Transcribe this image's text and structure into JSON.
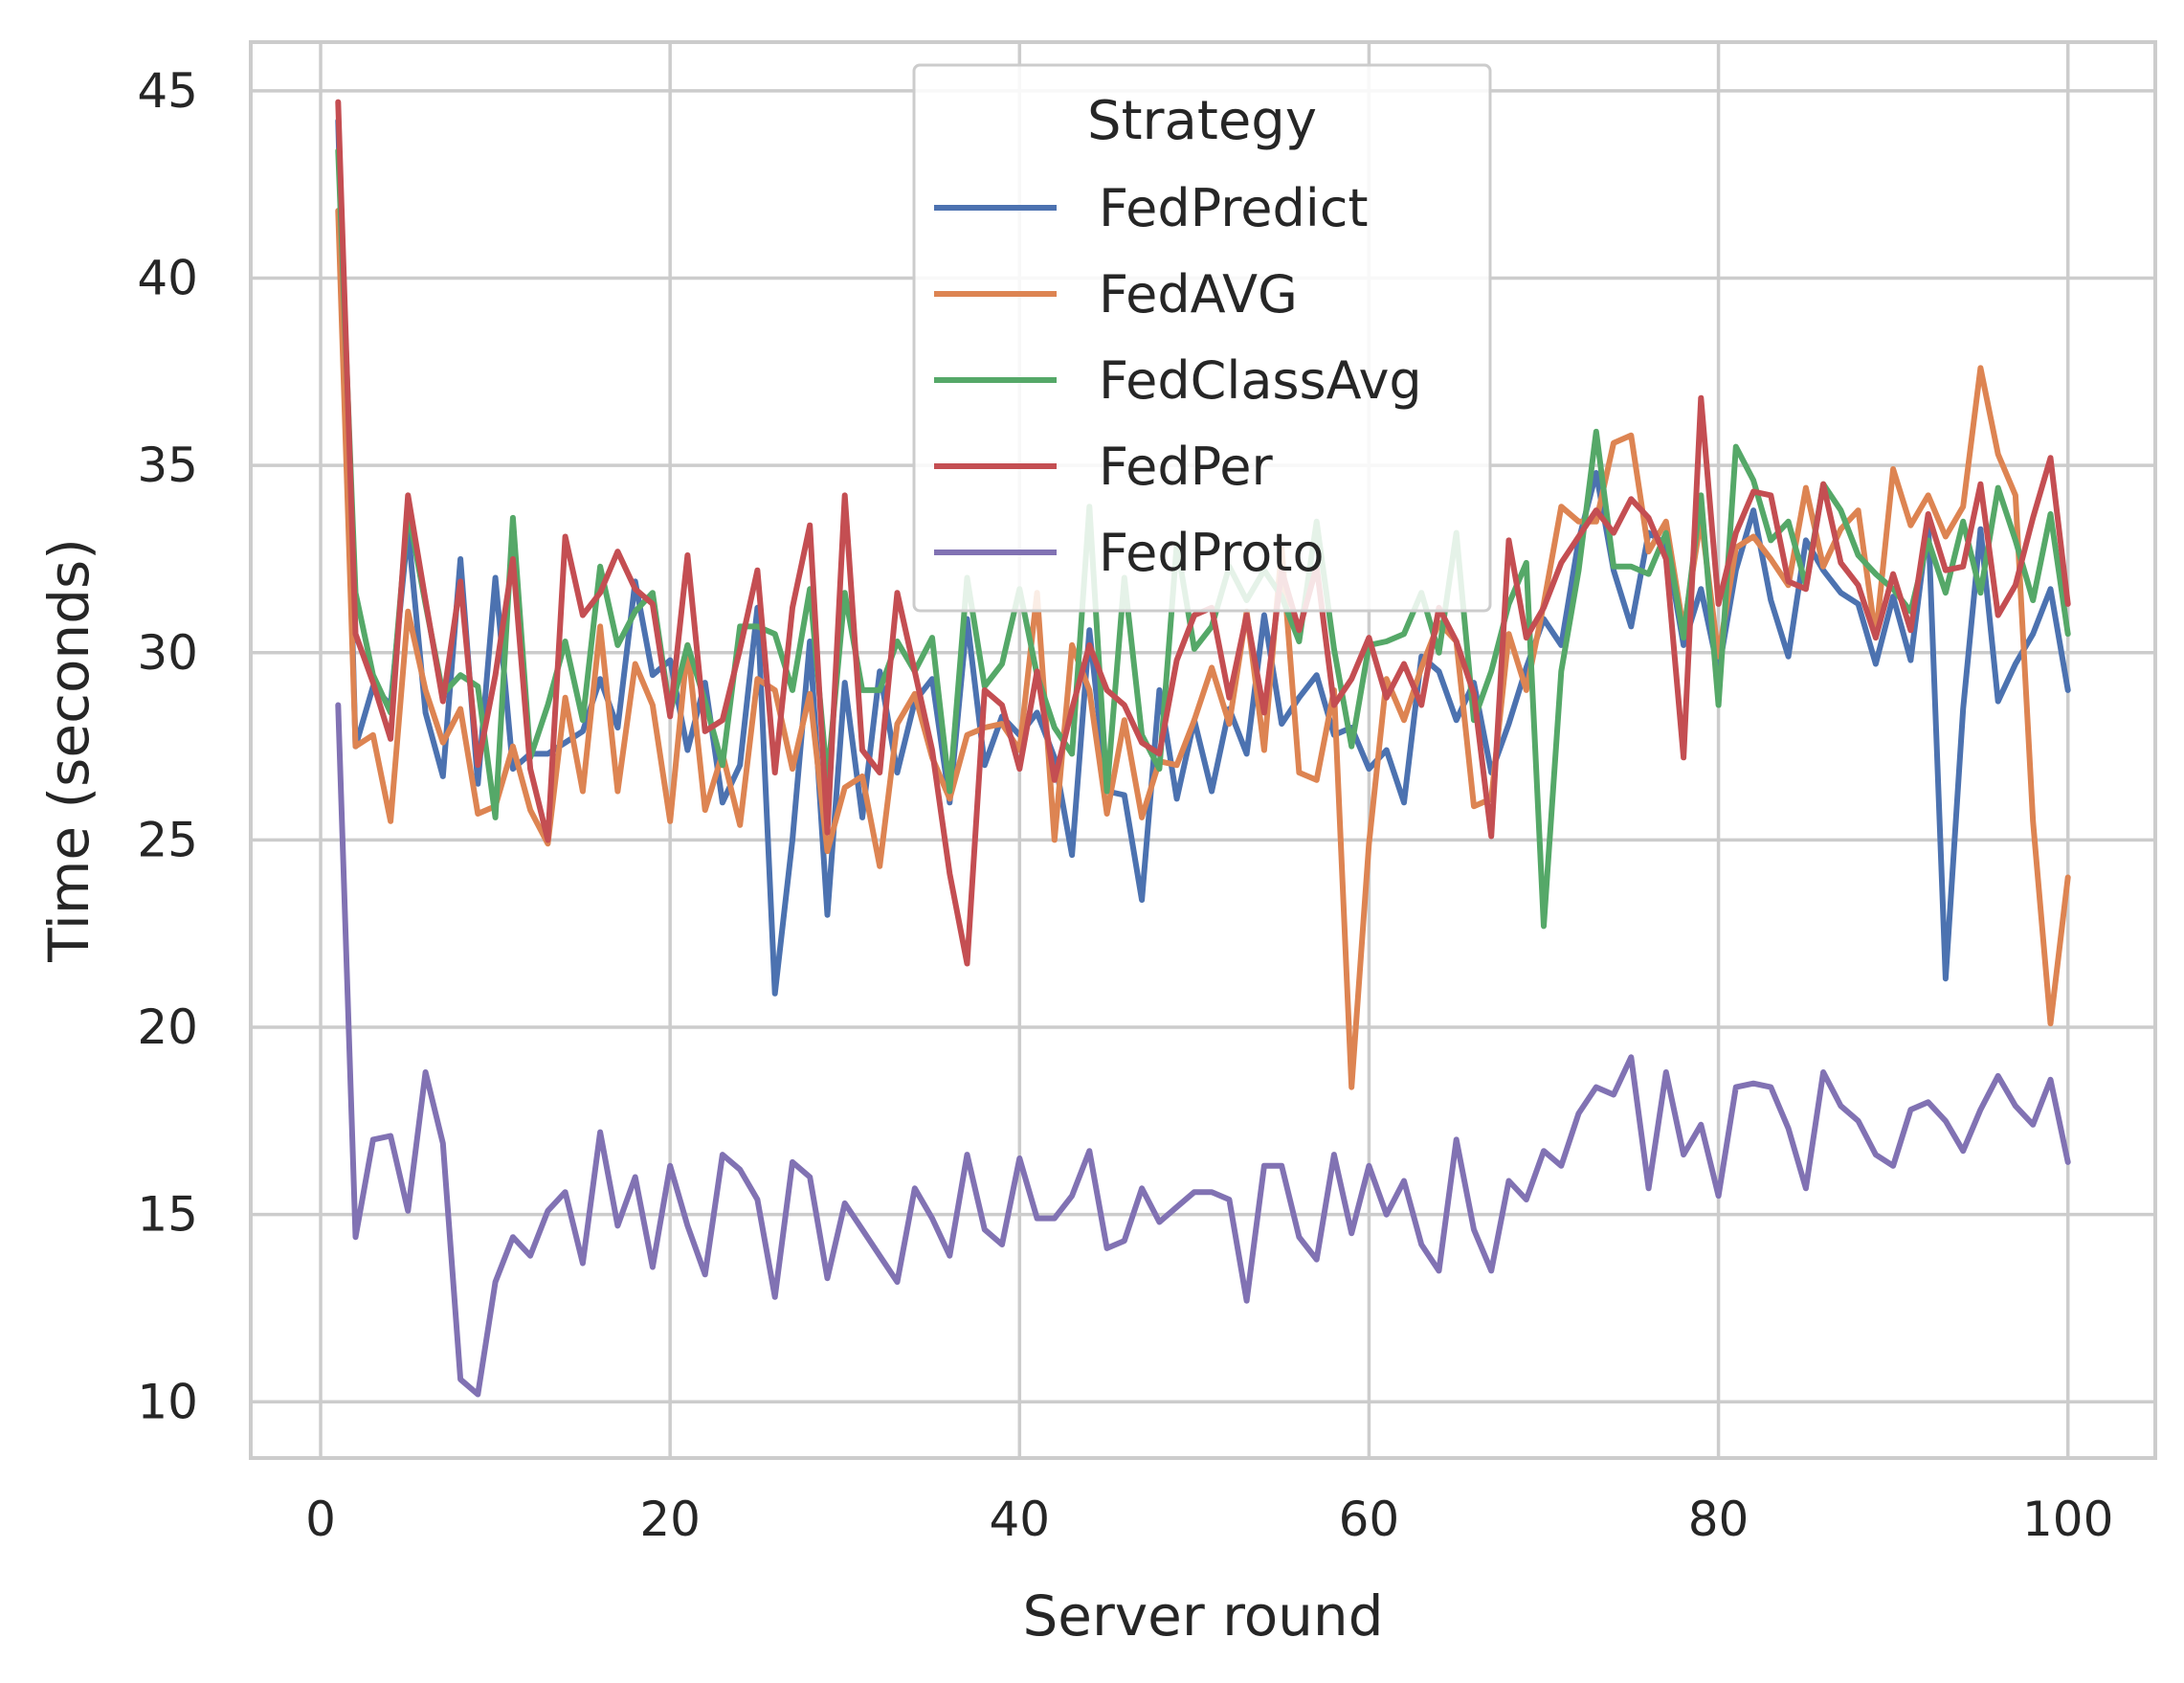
{
  "chart_data": {
    "type": "line",
    "xlabel": "Server round",
    "ylabel": "Time (seconds)",
    "xlim": [
      -4,
      105
    ],
    "ylim": [
      8.5,
      46.3
    ],
    "xticks": [
      0,
      20,
      40,
      60,
      80,
      100
    ],
    "yticks": [
      10,
      15,
      20,
      25,
      30,
      35,
      40,
      45
    ],
    "grid": true,
    "legend": {
      "title": "Strategy",
      "placement": "top-center"
    },
    "series": [
      {
        "name": "FedPredict",
        "color": "#4c72b0",
        "x": [
          1,
          2,
          3,
          4,
          5,
          6,
          7,
          8,
          9,
          10,
          11,
          12,
          13,
          14,
          15,
          16,
          17,
          18,
          19,
          20,
          21,
          22,
          23,
          24,
          25,
          26,
          27,
          28,
          29,
          30,
          31,
          32,
          33,
          34,
          35,
          36,
          37,
          38,
          39,
          40,
          41,
          42,
          43,
          44,
          45,
          46,
          47,
          48,
          49,
          50,
          51,
          52,
          53,
          54,
          55,
          56,
          57,
          58,
          59,
          60,
          61,
          62,
          63,
          64,
          65,
          66,
          67,
          68,
          69,
          70,
          71,
          72,
          73,
          74,
          75,
          76,
          77,
          78,
          79,
          80,
          81,
          82,
          83,
          84,
          85,
          86,
          87,
          88,
          89,
          90,
          91,
          92,
          93,
          94,
          95,
          96,
          97,
          98,
          99,
          100
        ],
        "values": [
          44.2,
          27.5,
          29.1,
          28.6,
          33.3,
          28.4,
          26.7,
          32.5,
          26.5,
          32.0,
          26.9,
          27.3,
          27.3,
          27.6,
          27.9,
          29.3,
          28.0,
          31.9,
          29.4,
          29.8,
          27.4,
          29.2,
          26.0,
          27.0,
          31.2,
          20.9,
          25.0,
          30.3,
          23.0,
          29.2,
          25.6,
          29.5,
          26.8,
          28.7,
          29.3,
          26.0,
          30.9,
          27.0,
          28.3,
          27.8,
          28.4,
          27.2,
          24.6,
          30.6,
          26.3,
          26.2,
          23.4,
          29.0,
          26.1,
          28.2,
          26.3,
          28.5,
          27.3,
          31.0,
          28.1,
          28.8,
          29.4,
          27.8,
          28.0,
          26.9,
          27.4,
          26.0,
          29.9,
          29.5,
          28.2,
          29.2,
          26.8,
          28.1,
          29.6,
          30.9,
          30.2,
          33.0,
          34.8,
          32.2,
          30.7,
          33.2,
          32.9,
          30.2,
          31.7,
          29.5,
          32.2,
          33.8,
          31.4,
          29.9,
          33.0,
          32.2,
          31.6,
          31.3,
          29.7,
          31.5,
          29.8,
          33.5,
          21.3,
          28.5,
          33.3,
          28.7,
          29.7,
          30.5,
          31.7,
          29.0
        ]
      },
      {
        "name": "FedAVG",
        "color": "#dd8452",
        "x": [
          1,
          2,
          3,
          4,
          5,
          6,
          7,
          8,
          9,
          10,
          11,
          12,
          13,
          14,
          15,
          16,
          17,
          18,
          19,
          20,
          21,
          22,
          23,
          24,
          25,
          26,
          27,
          28,
          29,
          30,
          31,
          32,
          33,
          34,
          35,
          36,
          37,
          38,
          39,
          40,
          41,
          42,
          43,
          44,
          45,
          46,
          47,
          48,
          49,
          50,
          51,
          52,
          53,
          54,
          55,
          56,
          57,
          58,
          59,
          60,
          61,
          62,
          63,
          64,
          65,
          66,
          67,
          68,
          69,
          70,
          71,
          72,
          73,
          74,
          75,
          76,
          77,
          78,
          79,
          80,
          81,
          82,
          83,
          84,
          85,
          86,
          87,
          88,
          89,
          90,
          91,
          92,
          93,
          94,
          95,
          96,
          97,
          98,
          99,
          100
        ],
        "values": [
          41.8,
          27.5,
          27.8,
          25.5,
          31.1,
          29.0,
          27.6,
          28.5,
          25.7,
          25.9,
          27.5,
          25.8,
          24.9,
          28.8,
          26.3,
          30.7,
          26.3,
          29.7,
          28.6,
          25.5,
          30.2,
          25.8,
          27.3,
          25.4,
          29.3,
          29.0,
          26.9,
          28.9,
          24.7,
          26.4,
          26.7,
          24.3,
          28.1,
          28.9,
          27.2,
          26.1,
          27.8,
          28.0,
          28.1,
          27.4,
          31.6,
          25.0,
          30.2,
          29.0,
          25.7,
          28.2,
          25.6,
          27.1,
          27.0,
          28.2,
          29.6,
          28.1,
          31.1,
          27.4,
          32.8,
          26.8,
          26.6,
          29.0,
          18.4,
          24.9,
          29.3,
          28.2,
          29.6,
          30.8,
          30.3,
          25.9,
          26.1,
          30.5,
          29.0,
          31.3,
          33.9,
          33.5,
          33.5,
          35.6,
          35.8,
          32.7,
          33.5,
          30.6,
          33.6,
          29.9,
          32.8,
          33.1,
          32.5,
          31.8,
          34.4,
          32.3,
          33.3,
          33.8,
          30.4,
          34.9,
          33.4,
          34.2,
          33.1,
          33.9,
          37.6,
          35.3,
          34.2,
          25.5,
          20.1,
          24.0
        ]
      },
      {
        "name": "FedClassAvg",
        "color": "#55a868",
        "x": [
          1,
          2,
          3,
          4,
          5,
          6,
          7,
          8,
          9,
          10,
          11,
          12,
          13,
          14,
          15,
          16,
          17,
          18,
          19,
          20,
          21,
          22,
          23,
          24,
          25,
          26,
          27,
          28,
          29,
          30,
          31,
          32,
          33,
          34,
          35,
          36,
          37,
          38,
          39,
          40,
          41,
          42,
          43,
          44,
          45,
          46,
          47,
          48,
          49,
          50,
          51,
          52,
          53,
          54,
          55,
          56,
          57,
          58,
          59,
          60,
          61,
          62,
          63,
          64,
          65,
          66,
          67,
          68,
          69,
          70,
          71,
          72,
          73,
          74,
          75,
          76,
          77,
          78,
          79,
          80,
          81,
          82,
          83,
          84,
          85,
          86,
          87,
          88,
          89,
          90,
          91,
          92,
          93,
          94,
          95,
          96,
          97,
          98,
          99,
          100
        ],
        "values": [
          43.4,
          31.6,
          29.4,
          28.4,
          33.8,
          31.3,
          28.9,
          29.4,
          29.1,
          25.6,
          33.6,
          27.2,
          28.6,
          30.3,
          28.2,
          32.3,
          30.2,
          31.1,
          31.6,
          28.4,
          30.2,
          28.7,
          27.0,
          30.7,
          30.7,
          30.5,
          29.0,
          31.7,
          26.6,
          31.6,
          29.0,
          29.0,
          30.3,
          29.5,
          30.4,
          26.3,
          32.0,
          29.1,
          29.7,
          31.7,
          29.4,
          28.0,
          27.3,
          33.9,
          26.3,
          32.0,
          27.8,
          26.9,
          32.9,
          30.1,
          30.7,
          32.3,
          31.4,
          32.2,
          31.5,
          30.3,
          33.5,
          30.1,
          27.5,
          30.2,
          30.3,
          30.5,
          31.6,
          30.0,
          33.2,
          28.2,
          29.5,
          31.3,
          32.4,
          22.7,
          29.5,
          32.2,
          35.9,
          32.3,
          32.3,
          32.1,
          33.2,
          30.4,
          34.2,
          28.6,
          35.5,
          34.6,
          33.0,
          33.5,
          31.8,
          34.5,
          33.8,
          32.6,
          32.1,
          31.7,
          31.1,
          33.0,
          31.6,
          33.5,
          31.6,
          34.4,
          33.0,
          31.4,
          33.7,
          30.5
        ]
      },
      {
        "name": "FedPer",
        "color": "#c44e52",
        "x": [
          1,
          2,
          3,
          4,
          5,
          6,
          7,
          8,
          9,
          10,
          11,
          12,
          13,
          14,
          15,
          16,
          17,
          18,
          19,
          20,
          21,
          22,
          23,
          24,
          25,
          26,
          27,
          28,
          29,
          30,
          31,
          32,
          33,
          34,
          35,
          36,
          37,
          38,
          39,
          40,
          41,
          42,
          43,
          44,
          45,
          46,
          47,
          48,
          49,
          50,
          51,
          52,
          53,
          54,
          55,
          56,
          57,
          58,
          59,
          60,
          61,
          62,
          63,
          64,
          65,
          66,
          67,
          68,
          69,
          70,
          71,
          72,
          73,
          74,
          75,
          76,
          77,
          78,
          79,
          80,
          81,
          82,
          83,
          84,
          85,
          86,
          87,
          88,
          89,
          90,
          91,
          92,
          93,
          94,
          95,
          96,
          97,
          98,
          99,
          100
        ],
        "values": [
          44.7,
          30.5,
          29.2,
          27.7,
          34.2,
          31.4,
          28.7,
          31.9,
          27.0,
          29.4,
          32.5,
          26.9,
          25.0,
          33.1,
          31.0,
          31.6,
          32.7,
          31.7,
          31.3,
          28.3,
          32.6,
          27.9,
          28.2,
          30.1,
          32.2,
          26.8,
          31.2,
          33.4,
          25.2,
          34.2,
          27.4,
          26.8,
          31.6,
          29.5,
          27.4,
          24.1,
          21.7,
          29.0,
          28.6,
          26.9,
          29.5,
          26.6,
          28.5,
          30.2,
          29.0,
          28.6,
          27.6,
          27.3,
          29.8,
          31.0,
          31.2,
          28.8,
          31.0,
          28.4,
          32.2,
          30.6,
          32.3,
          28.6,
          29.3,
          30.4,
          28.8,
          29.7,
          28.6,
          31.2,
          30.3,
          28.9,
          25.1,
          33.0,
          30.4,
          31.2,
          32.4,
          33.1,
          33.8,
          33.2,
          34.1,
          33.6,
          32.5,
          27.2,
          36.8,
          31.3,
          33.2,
          34.3,
          34.2,
          31.9,
          31.7,
          34.5,
          32.4,
          31.8,
          30.4,
          32.1,
          30.6,
          33.7,
          32.2,
          32.3,
          34.5,
          31.0,
          31.8,
          33.6,
          35.2,
          31.3
        ]
      },
      {
        "name": "FedProto",
        "color": "#8172b3",
        "x": [
          1,
          2,
          3,
          4,
          5,
          6,
          7,
          8,
          9,
          10,
          11,
          12,
          13,
          14,
          15,
          16,
          17,
          18,
          19,
          20,
          21,
          22,
          23,
          24,
          25,
          26,
          27,
          28,
          29,
          30,
          31,
          32,
          33,
          34,
          35,
          36,
          37,
          38,
          39,
          40,
          41,
          42,
          43,
          44,
          45,
          46,
          47,
          48,
          49,
          50,
          51,
          52,
          53,
          54,
          55,
          56,
          57,
          58,
          59,
          60,
          61,
          62,
          63,
          64,
          65,
          66,
          67,
          68,
          69,
          70,
          71,
          72,
          73,
          74,
          75,
          76,
          77,
          78,
          79,
          80,
          81,
          82,
          83,
          84,
          85,
          86,
          87,
          88,
          89,
          90,
          91,
          92,
          93,
          94,
          95,
          96,
          97,
          98,
          99,
          100
        ],
        "values": [
          28.6,
          14.4,
          17.0,
          17.1,
          15.1,
          18.8,
          16.9,
          10.6,
          10.2,
          13.2,
          14.4,
          13.9,
          15.1,
          15.6,
          13.7,
          17.2,
          14.7,
          16.0,
          13.6,
          16.3,
          14.7,
          13.4,
          16.6,
          16.2,
          15.4,
          12.8,
          16.4,
          16.0,
          13.3,
          15.3,
          14.6,
          13.9,
          13.2,
          15.7,
          14.9,
          13.9,
          16.6,
          14.6,
          14.2,
          16.5,
          14.9,
          14.9,
          15.5,
          16.7,
          14.1,
          14.3,
          15.7,
          14.8,
          15.2,
          15.6,
          15.6,
          15.4,
          12.7,
          16.3,
          16.3,
          14.4,
          13.8,
          16.6,
          14.5,
          16.3,
          15.0,
          15.9,
          14.2,
          13.5,
          17.0,
          14.6,
          13.5,
          15.9,
          15.4,
          16.7,
          16.3,
          17.7,
          18.4,
          18.2,
          19.2,
          15.7,
          18.8,
          16.6,
          17.4,
          15.5,
          18.4,
          18.5,
          18.4,
          17.3,
          15.7,
          18.8,
          17.9,
          17.5,
          16.6,
          16.3,
          17.8,
          18.0,
          17.5,
          16.7,
          17.8,
          18.7,
          17.9,
          17.4,
          18.6,
          16.4
        ]
      }
    ]
  }
}
